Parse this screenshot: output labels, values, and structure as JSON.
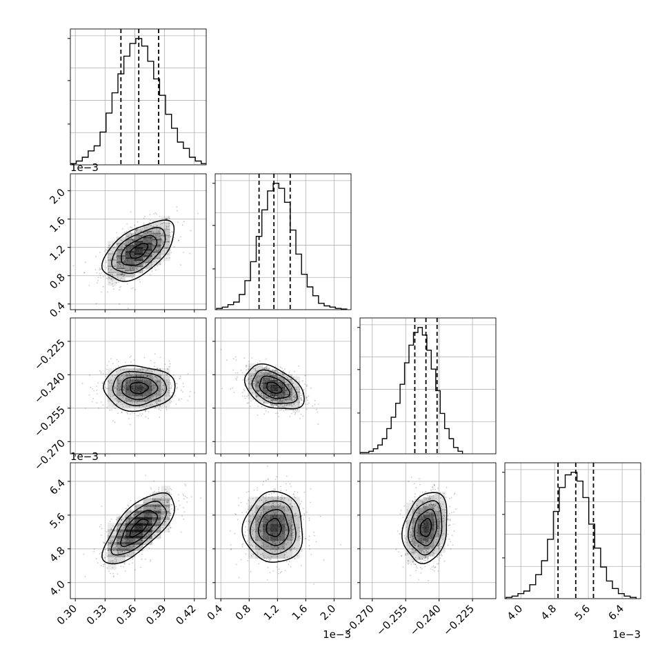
{
  "chart_data": {
    "type": "corner",
    "parameters": 4,
    "axis_ticks": [
      {
        "values": [
          0.3,
          0.33,
          0.36,
          0.39,
          0.42
        ],
        "labels": [
          "0.30",
          "0.33",
          "0.36",
          "0.39",
          "0.42"
        ],
        "offset": ""
      },
      {
        "values": [
          0.4,
          0.8,
          1.2,
          1.6,
          2.0
        ],
        "labels": [
          "0.4",
          "0.8",
          "1.2",
          "1.6",
          "2.0"
        ],
        "offset": "1e−3"
      },
      {
        "values": [
          -0.27,
          -0.255,
          -0.24,
          -0.225
        ],
        "labels": [
          "−0.270",
          "−0.255",
          "−0.240",
          "−0.225"
        ],
        "offset": ""
      },
      {
        "values": [
          4.0,
          4.8,
          5.6,
          6.4
        ],
        "labels": [
          "4.0",
          "4.8",
          "5.6",
          "6.4"
        ],
        "offset": "1e−3"
      }
    ],
    "axis_ranges": [
      [
        0.295,
        0.432
      ],
      [
        0.32,
        2.24
      ],
      [
        -0.2755,
        -0.2145
      ],
      [
        3.62,
        6.84
      ]
    ],
    "marginals": [
      {
        "quantiles": [
          0.346,
          0.364,
          0.384
        ],
        "bins_center": [
          0.298,
          0.304,
          0.31,
          0.316,
          0.322,
          0.328,
          0.334,
          0.34,
          0.346,
          0.352,
          0.358,
          0.364,
          0.37,
          0.376,
          0.382,
          0.388,
          0.394,
          0.4,
          0.406,
          0.412,
          0.418,
          0.424,
          0.43
        ],
        "counts": [
          0.01,
          0.03,
          0.06,
          0.11,
          0.15,
          0.26,
          0.41,
          0.57,
          0.72,
          0.86,
          0.96,
          1.0,
          0.94,
          0.82,
          0.68,
          0.55,
          0.4,
          0.29,
          0.18,
          0.13,
          0.06,
          0.03,
          0.01
        ]
      },
      {
        "quantiles": [
          0.94,
          1.15,
          1.38
        ],
        "bins_center": [
          0.38,
          0.46,
          0.54,
          0.62,
          0.7,
          0.78,
          0.86,
          0.94,
          1.02,
          1.1,
          1.18,
          1.26,
          1.34,
          1.42,
          1.5,
          1.58,
          1.66,
          1.74,
          1.82,
          1.9,
          1.98,
          2.06,
          2.14
        ],
        "counts": [
          0.01,
          0.02,
          0.04,
          0.06,
          0.12,
          0.23,
          0.38,
          0.58,
          0.79,
          0.94,
          1.0,
          0.96,
          0.85,
          0.63,
          0.44,
          0.28,
          0.18,
          0.11,
          0.05,
          0.03,
          0.02,
          0.01,
          0.005
        ]
      },
      {
        "quantiles": [
          -0.2509,
          -0.2459,
          -0.2409
        ],
        "bins_center": [
          -0.2745,
          -0.2725,
          -0.2705,
          -0.2685,
          -0.2665,
          -0.2645,
          -0.2625,
          -0.2605,
          -0.2585,
          -0.2565,
          -0.2545,
          -0.2525,
          -0.2505,
          -0.2485,
          -0.2465,
          -0.2445,
          -0.2425,
          -0.2405,
          -0.2385,
          -0.2365,
          -0.2345,
          -0.2325,
          -0.2305
        ],
        "counts": [
          0.01,
          0.01,
          0.02,
          0.04,
          0.07,
          0.12,
          0.2,
          0.29,
          0.4,
          0.55,
          0.72,
          0.86,
          0.96,
          1.0,
          0.94,
          0.82,
          0.67,
          0.5,
          0.32,
          0.2,
          0.12,
          0.05,
          0.02
        ]
      },
      {
        "quantiles": [
          4.88,
          5.3,
          5.72
        ],
        "bins_center": [
          3.72,
          3.86,
          4.0,
          4.14,
          4.28,
          4.42,
          4.56,
          4.7,
          4.84,
          4.98,
          5.12,
          5.26,
          5.4,
          5.54,
          5.68,
          5.82,
          5.96,
          6.1,
          6.24,
          6.38,
          6.52,
          6.66
        ],
        "counts": [
          0.01,
          0.02,
          0.04,
          0.06,
          0.11,
          0.19,
          0.3,
          0.47,
          0.69,
          0.88,
          0.98,
          1.0,
          0.93,
          0.8,
          0.59,
          0.4,
          0.25,
          0.14,
          0.08,
          0.04,
          0.02,
          0.01
        ]
      }
    ],
    "joint": [
      {
        "row": 1,
        "col": 0,
        "mean": [
          0.364,
          1.15
        ],
        "sd": [
          0.018,
          0.21
        ],
        "corr": 0.55
      },
      {
        "row": 2,
        "col": 0,
        "mean": [
          0.364,
          -0.2459
        ],
        "sd": [
          0.018,
          0.005
        ],
        "corr": 0.0
      },
      {
        "row": 2,
        "col": 1,
        "mean": [
          1.15,
          -0.2459
        ],
        "sd": [
          0.21,
          0.005
        ],
        "corr": -0.4
      },
      {
        "row": 3,
        "col": 0,
        "mean": [
          0.364,
          5.3
        ],
        "sd": [
          0.018,
          0.42
        ],
        "corr": 0.7
      },
      {
        "row": 3,
        "col": 1,
        "mean": [
          1.15,
          5.3
        ],
        "sd": [
          0.21,
          0.42
        ],
        "corr": 0.0
      },
      {
        "row": 3,
        "col": 2,
        "mean": [
          -0.2459,
          5.3
        ],
        "sd": [
          0.005,
          0.42
        ],
        "corr": 0.2
      }
    ],
    "contour_levels_sigma": [
      0.5,
      1.0,
      1.5,
      2.0
    ],
    "grid": true,
    "colors": {
      "line": "#000000",
      "grid": "#b0b0b0",
      "points": "#000000",
      "hist": "#000000"
    }
  }
}
